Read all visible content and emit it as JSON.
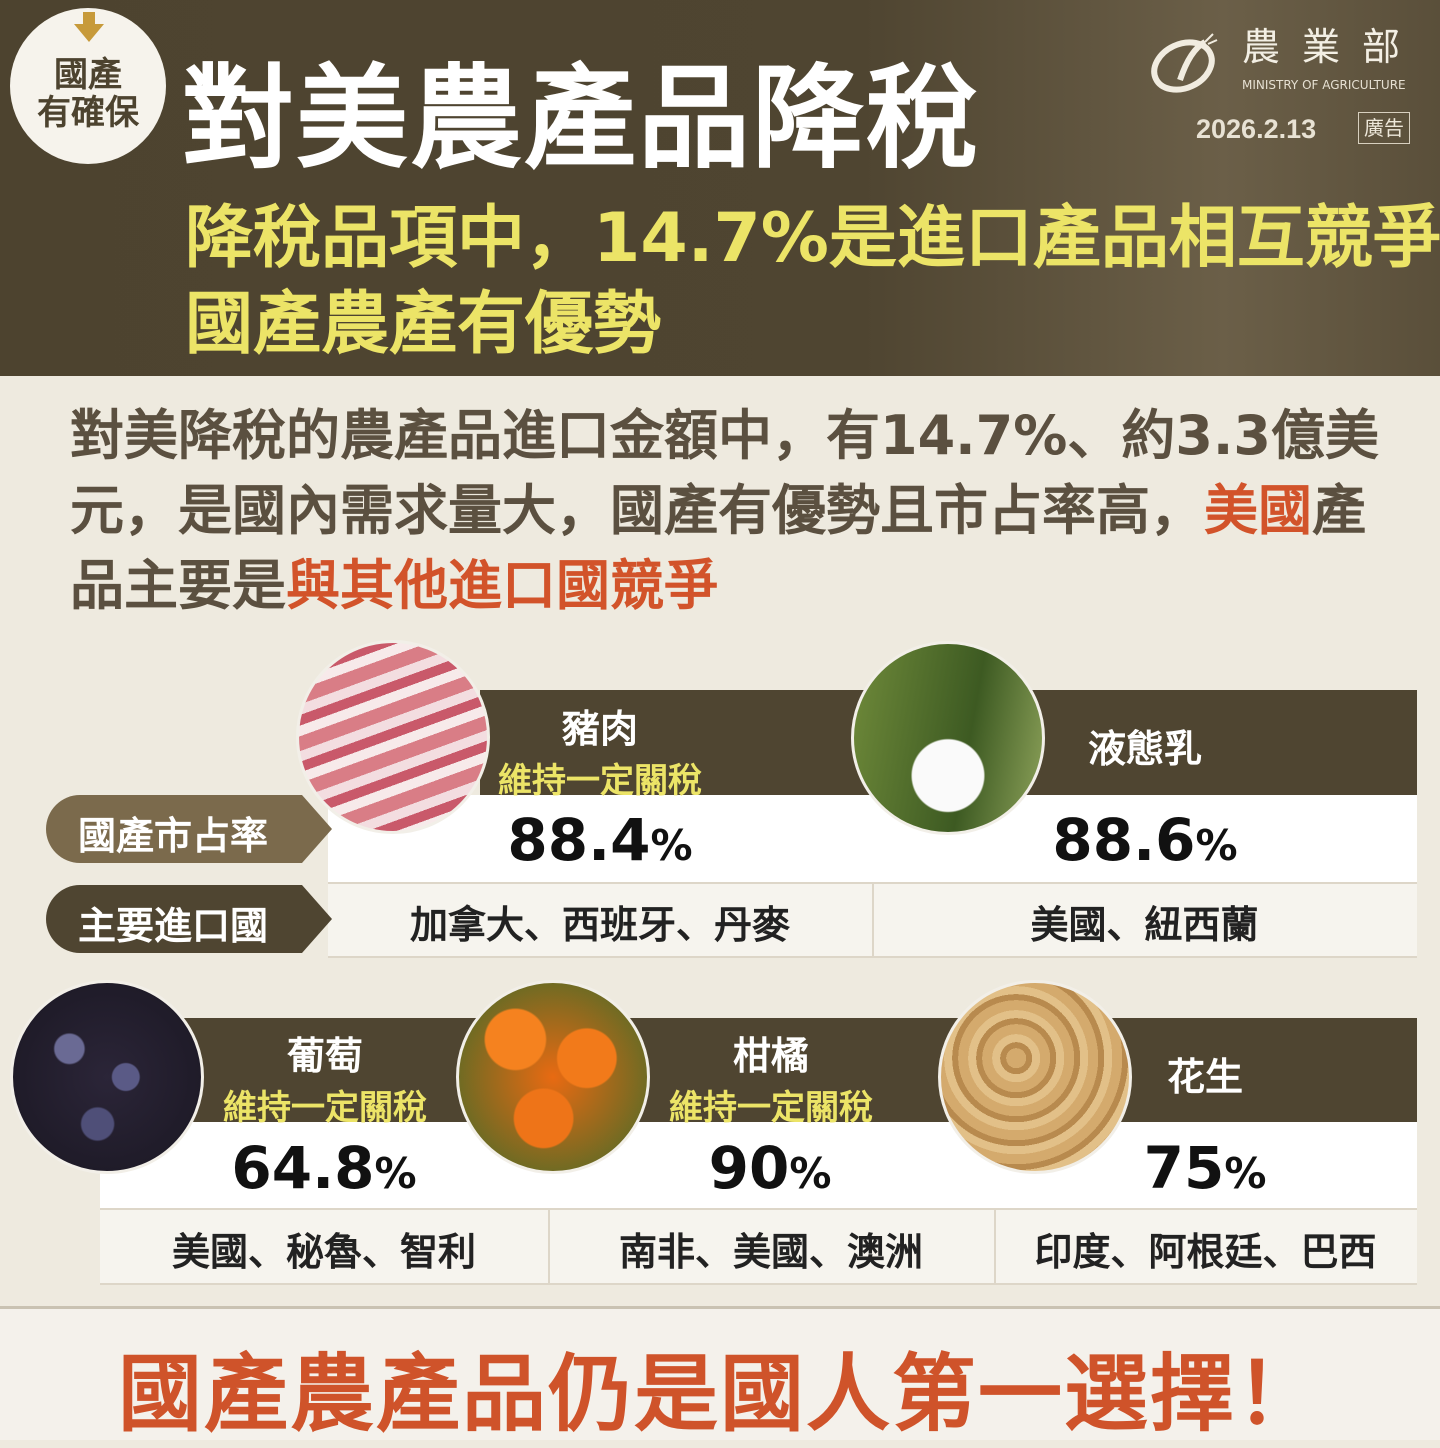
{
  "header": {
    "badge": [
      "國產",
      "有確保"
    ],
    "title": "對美農產品降稅",
    "subtitle_line1": "降稅品項中，14.7%是進口產品相互競爭",
    "subtitle_line2": "國產農產有優勢",
    "logo_cn": "農業部",
    "logo_en": "MINISTRY OF AGRICULTURE",
    "date": "2026.2.13",
    "ad_label": "廣告"
  },
  "intro": {
    "text": "對美降稅的農產品進口金額中，有14.7%、約3.3億美元，是國內需求量大，國產有優勢且市占率高，",
    "red1": "美國",
    "mid": "產品主要是",
    "red2": "與其他進口國競爭"
  },
  "labels": {
    "share": "國產市占率",
    "importers": "主要進口國"
  },
  "products": [
    {
      "name": "豬肉",
      "note": "維持一定關稅",
      "share": "88.4",
      "importers": "加拿大、西班牙、丹麥",
      "image": "pork"
    },
    {
      "name": "液態乳",
      "note": "",
      "share": "88.6",
      "importers": "美國、紐西蘭",
      "image": "milk"
    },
    {
      "name": "葡萄",
      "note": "維持一定關稅",
      "share": "64.8",
      "importers": "美國、秘魯、智利",
      "image": "grapes"
    },
    {
      "name": "柑橘",
      "note": "維持一定關稅",
      "share": "90",
      "importers": "南非、美國、澳洲",
      "image": "oranges"
    },
    {
      "name": "花生",
      "note": "",
      "share": "75",
      "importers": "印度、阿根廷、巴西",
      "image": "peanuts"
    }
  ],
  "percent_sign": "%",
  "footer": "國產農產品仍是國人第一選擇！",
  "colors": {
    "brown": "#4f4531",
    "yellow": "#ece467",
    "red": "#d2532a",
    "background": "#eeeadf"
  }
}
